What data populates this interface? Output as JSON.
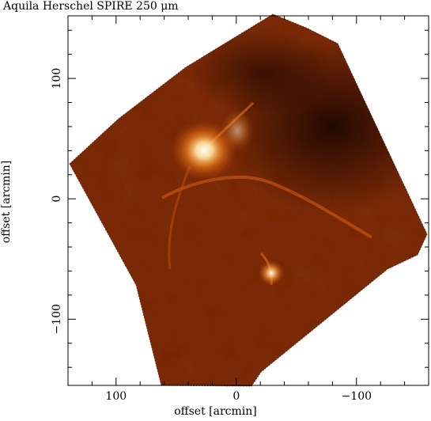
{
  "figure": {
    "title": "Aquila Herschel SPIRE 250 μm",
    "xlabel": "offset [arcmin]",
    "ylabel": "offset [arcmin]",
    "x_ticks": [
      "100",
      "0",
      "−100"
    ],
    "y_ticks": [
      "100",
      "0",
      "−100"
    ],
    "x_tick_values": [
      100,
      0,
      -100
    ],
    "y_tick_values": [
      100,
      0,
      -100
    ],
    "xlim": [
      140,
      -160
    ],
    "ylim": [
      -155,
      152
    ],
    "colormap": [
      "#1a0400",
      "#5a1800",
      "#a43a05",
      "#e06010",
      "#ffb050",
      "#ffffff"
    ],
    "bright_regions": [
      "W40 cloud (bright emission near offset 30, 45)",
      "Serpens South (compact emission near offset -30, -60)"
    ]
  }
}
